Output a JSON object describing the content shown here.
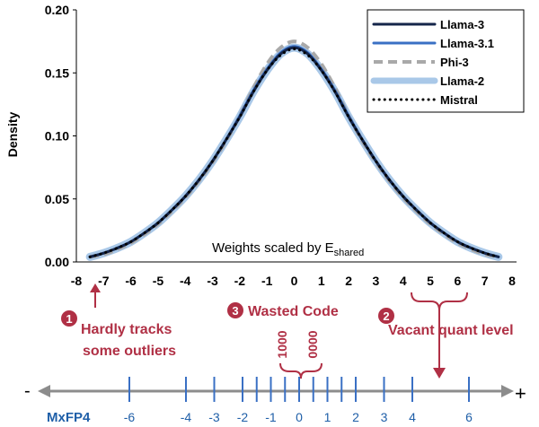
{
  "chart_data": {
    "type": "line",
    "xlabel": "Weights scaled by E",
    "xlabel_sub": "shared",
    "ylabel": "Density",
    "xlim": [
      -8,
      8
    ],
    "ylim": [
      0,
      0.2
    ],
    "x_ticks": [
      "-8",
      "-7",
      "-6",
      "-5",
      "-4",
      "-3",
      "-2",
      "-1",
      "0",
      "1",
      "2",
      "3",
      "4",
      "5",
      "6",
      "7",
      "8"
    ],
    "y_ticks": [
      "0.00",
      "0.05",
      "0.10",
      "0.15",
      "0.20"
    ],
    "grid": false,
    "legend_position": "top-right",
    "x": [
      -7.5,
      -7,
      -6.5,
      -6,
      -5.5,
      -5,
      -4.5,
      -4,
      -3.5,
      -3,
      -2.5,
      -2,
      -1.5,
      -1,
      -0.5,
      0,
      0.5,
      1,
      1.5,
      2,
      2.5,
      3,
      3.5,
      4,
      4.5,
      5,
      5.5,
      6,
      6.5,
      7,
      7.5
    ],
    "series": [
      {
        "name": "Llama-3",
        "color": "#14254a",
        "style": "solid",
        "width": 3,
        "values": [
          0.004,
          0.007,
          0.011,
          0.016,
          0.023,
          0.031,
          0.041,
          0.052,
          0.065,
          0.08,
          0.097,
          0.115,
          0.135,
          0.152,
          0.165,
          0.17,
          0.165,
          0.152,
          0.135,
          0.115,
          0.097,
          0.08,
          0.065,
          0.052,
          0.041,
          0.031,
          0.023,
          0.016,
          0.011,
          0.007,
          0.004
        ]
      },
      {
        "name": "Llama-3.1",
        "color": "#3a70c4",
        "style": "solid",
        "width": 3,
        "values": [
          0.004,
          0.007,
          0.011,
          0.016,
          0.023,
          0.031,
          0.041,
          0.052,
          0.065,
          0.08,
          0.097,
          0.116,
          0.136,
          0.153,
          0.166,
          0.171,
          0.166,
          0.153,
          0.136,
          0.116,
          0.097,
          0.08,
          0.065,
          0.052,
          0.041,
          0.031,
          0.023,
          0.016,
          0.011,
          0.007,
          0.004
        ]
      },
      {
        "name": "Phi-3",
        "color": "#a9a9a9",
        "style": "dashed",
        "width": 4,
        "values": [
          0.004,
          0.006,
          0.01,
          0.015,
          0.022,
          0.03,
          0.04,
          0.051,
          0.064,
          0.079,
          0.096,
          0.116,
          0.138,
          0.157,
          0.17,
          0.175,
          0.17,
          0.157,
          0.138,
          0.116,
          0.096,
          0.079,
          0.064,
          0.051,
          0.04,
          0.03,
          0.022,
          0.015,
          0.01,
          0.006,
          0.004
        ]
      },
      {
        "name": "Llama-2",
        "color": "#a9c8e8",
        "style": "solid",
        "width": 9,
        "values": [
          0.004,
          0.007,
          0.011,
          0.016,
          0.023,
          0.031,
          0.041,
          0.052,
          0.065,
          0.08,
          0.097,
          0.115,
          0.135,
          0.152,
          0.165,
          0.17,
          0.165,
          0.152,
          0.135,
          0.115,
          0.097,
          0.08,
          0.065,
          0.052,
          0.041,
          0.031,
          0.023,
          0.016,
          0.011,
          0.007,
          0.004
        ]
      },
      {
        "name": "Mistral",
        "color": "#000000",
        "style": "dotted",
        "width": 3,
        "values": [
          0.004,
          0.007,
          0.011,
          0.016,
          0.023,
          0.031,
          0.041,
          0.052,
          0.065,
          0.08,
          0.097,
          0.115,
          0.135,
          0.152,
          0.164,
          0.169,
          0.164,
          0.152,
          0.135,
          0.115,
          0.097,
          0.08,
          0.065,
          0.052,
          0.041,
          0.031,
          0.023,
          0.016,
          0.011,
          0.007,
          0.004
        ]
      }
    ]
  },
  "annotations": {
    "outliers_num": "1",
    "outliers_line1": "Hardly tracks",
    "outliers_line2": "some outliers",
    "wasted_num": "3",
    "wasted_label": "Wasted Code",
    "code_left": "1000",
    "code_right": "0000",
    "vacant_num": "2",
    "vacant_label": "Vacant quant level"
  },
  "number_line": {
    "format_label": "MxFP4",
    "minus": "-",
    "plus": "+",
    "levels": [
      {
        "v": -6,
        "label": "-6"
      },
      {
        "v": -4,
        "label": "-4"
      },
      {
        "v": -3,
        "label": "-3"
      },
      {
        "v": -2,
        "label": "-2"
      },
      {
        "v": -1.5,
        "label": ""
      },
      {
        "v": -1,
        "label": "-1"
      },
      {
        "v": -0.5,
        "label": ""
      },
      {
        "v": 0,
        "label": "0"
      },
      {
        "v": 0.5,
        "label": ""
      },
      {
        "v": 1,
        "label": "1"
      },
      {
        "v": 1.5,
        "label": ""
      },
      {
        "v": 2,
        "label": "2"
      },
      {
        "v": 3,
        "label": "3"
      },
      {
        "v": 4,
        "label": "4"
      },
      {
        "v": 6,
        "label": "6"
      }
    ]
  }
}
